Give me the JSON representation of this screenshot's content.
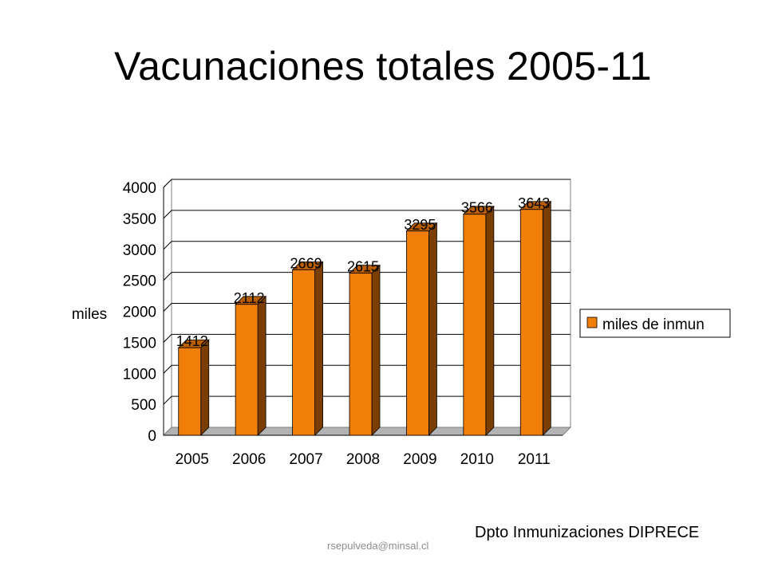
{
  "slide": {
    "title": "Vacunaciones totales 2005-11",
    "department": "Dpto  Inmunizaciones DIPRECE",
    "email": "rsepulveda@minsal.cl"
  },
  "chart_data": {
    "type": "bar",
    "categories": [
      "2005",
      "2006",
      "2007",
      "2008",
      "2009",
      "2010",
      "2011"
    ],
    "series": [
      {
        "name": "miles de inmun",
        "values": [
          1412,
          2112,
          2669,
          2615,
          3295,
          3566,
          3643
        ]
      }
    ],
    "data_labels": [
      "1412",
      "2112",
      "2669",
      "2615",
      "3295",
      "3566",
      "3643"
    ],
    "ylabel": "miles",
    "xlabel": "",
    "ylim": [
      0,
      4000
    ],
    "yticks": [
      "0",
      "500",
      "1000",
      "1500",
      "2000",
      "2500",
      "3000",
      "3500",
      "4000"
    ],
    "grid": true,
    "legend_position": "right",
    "style": "3d",
    "colors": {
      "bar_front": "#f07f09",
      "bar_side": "#7a3f00",
      "bar_top": "#b85e00",
      "grid": "#000000"
    }
  }
}
